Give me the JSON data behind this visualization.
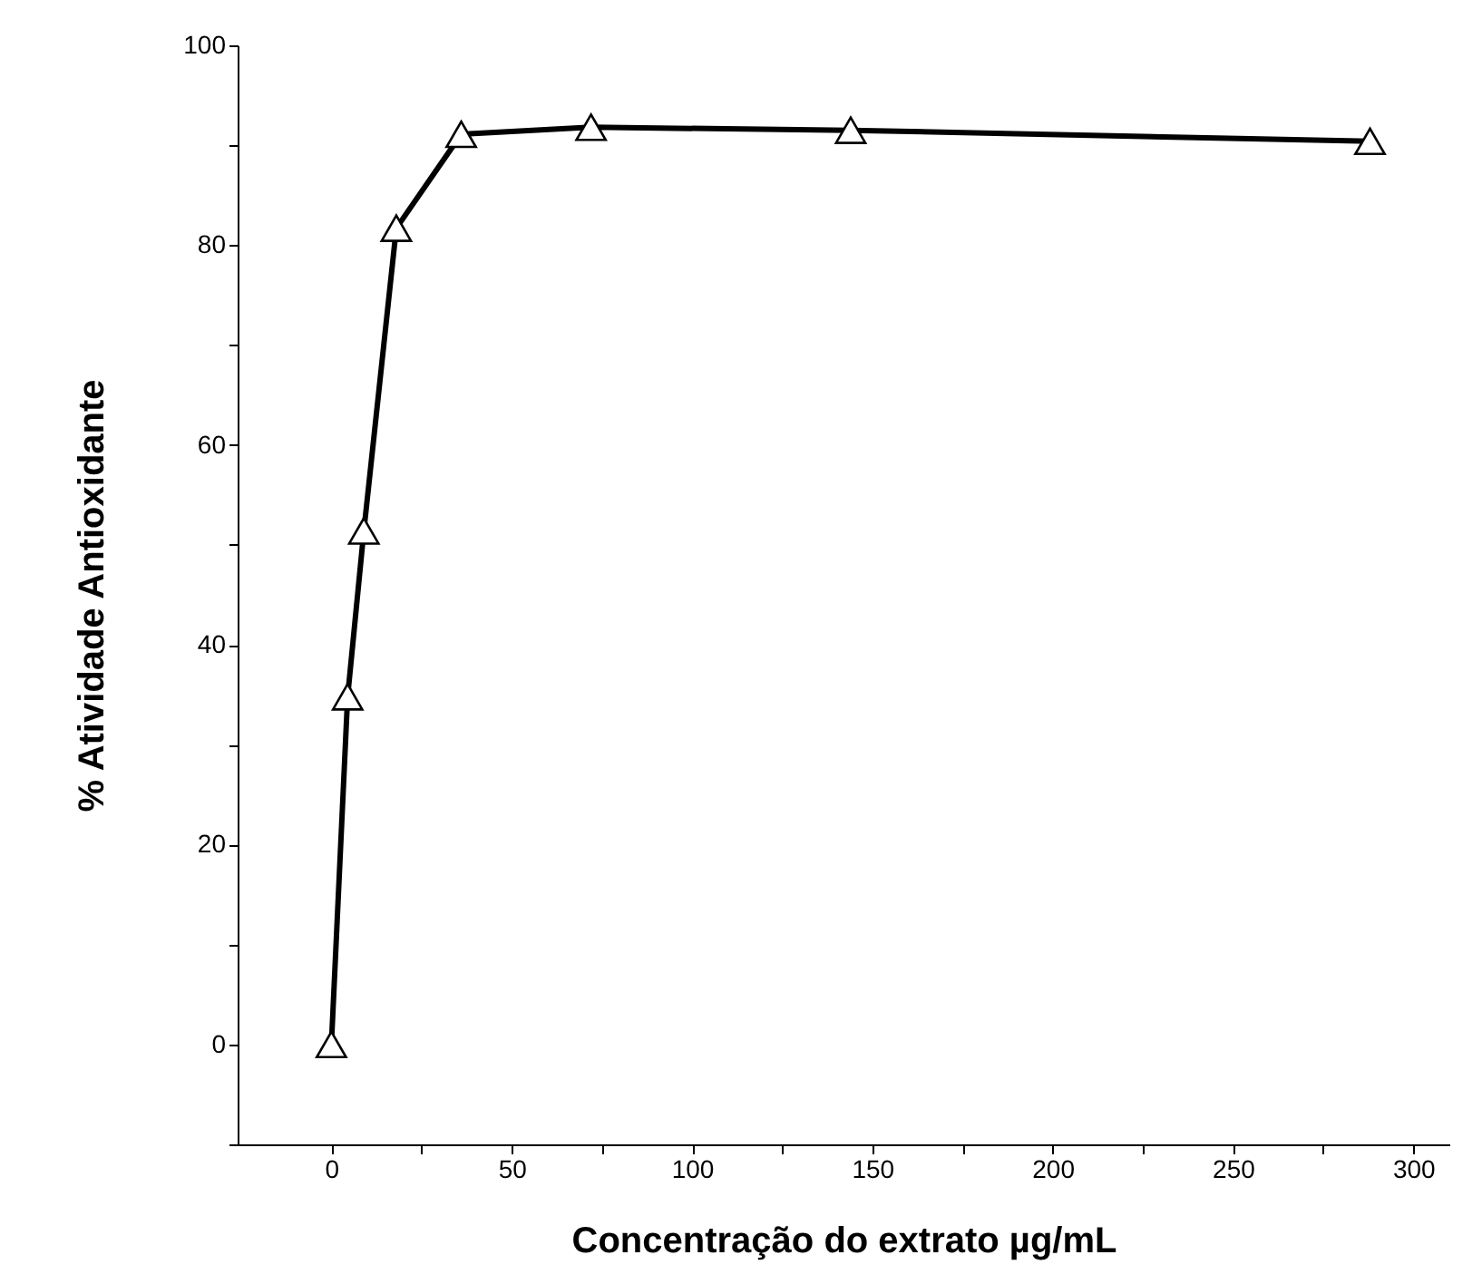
{
  "chart_data": {
    "type": "line",
    "xlabel": "Concentração do extrato µg/mL",
    "ylabel": "% Atividade Antioxidante",
    "x": [
      0,
      4.5,
      9,
      18,
      36,
      72,
      144,
      288
    ],
    "series": [
      {
        "color": "#000000",
        "values": [
          0,
          34.8,
          51.4,
          81.7,
          91.1,
          91.8,
          91.5,
          90.4
        ]
      }
    ],
    "xlim": [
      -26,
      310
    ],
    "ylim": [
      -10,
      100
    ],
    "xticks": [
      0,
      {
        "value": 25,
        "label": null
      },
      50,
      {
        "value": 75,
        "label": null
      },
      100,
      {
        "value": 125,
        "label": null
      },
      150,
      {
        "value": 175,
        "label": null
      },
      200,
      {
        "value": 225,
        "label": null
      },
      250,
      {
        "value": 275,
        "label": null
      },
      300
    ],
    "yticks": [
      {
        "value": -10,
        "label": null
      },
      0,
      {
        "value": 10,
        "label": null
      },
      20,
      {
        "value": 30,
        "label": null
      },
      40,
      {
        "value": 50,
        "label": null
      },
      60,
      {
        "value": 70,
        "label": null
      },
      80,
      {
        "value": 90,
        "label": null
      },
      100
    ],
    "marker": "triangle",
    "line_style": "solid",
    "grid": false,
    "legend": false
  }
}
